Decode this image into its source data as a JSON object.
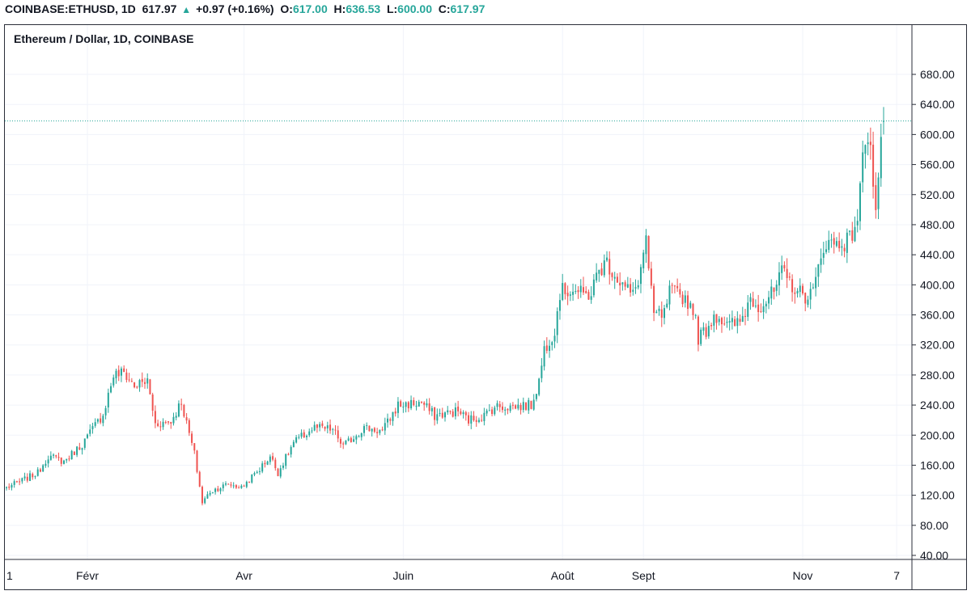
{
  "header": {
    "symbol": "COINBASE:ETHUSD, 1D",
    "last": "617.97",
    "change": "+0.97 (+0.16%)",
    "open_label": "O:",
    "open": "617.00",
    "high_label": "H:",
    "high": "636.53",
    "low_label": "L:",
    "low": "600.00",
    "close_label": "C:",
    "close": "617.97"
  },
  "colors": {
    "up": "#26a69a",
    "down": "#ef5350",
    "grid": "#f0f3fa",
    "price_line": "#26a69a"
  },
  "chart_data": {
    "type": "candlestick",
    "title": "Ethereum / Dollar, 1D, COINBASE",
    "ylim": [
      40,
      700
    ],
    "yticks": [
      "40.00",
      "80.00",
      "120.00",
      "160.00",
      "200.00",
      "240.00",
      "280.00",
      "320.00",
      "360.00",
      "400.00",
      "440.00",
      "480.00",
      "520.00",
      "560.00",
      "600.00",
      "640.00",
      "680.00"
    ],
    "xlim": [
      0,
      336
    ],
    "xticks": [
      {
        "label": "1",
        "x": 0
      },
      {
        "label": "Févr",
        "x": 31
      },
      {
        "label": "Avr",
        "x": 91
      },
      {
        "label": "Juin",
        "x": 152
      },
      {
        "label": "Août",
        "x": 213
      },
      {
        "label": "Sept",
        "x": 244
      },
      {
        "label": "Nov",
        "x": 305
      },
      {
        "label": "7",
        "x": 341
      }
    ],
    "grid": true,
    "last_price": 617.97,
    "anchors": [
      [
        0,
        130
      ],
      [
        5,
        138
      ],
      [
        12,
        150
      ],
      [
        16,
        172
      ],
      [
        22,
        165
      ],
      [
        29,
        188
      ],
      [
        37,
        228
      ],
      [
        41,
        280
      ],
      [
        45,
        283
      ],
      [
        49,
        265
      ],
      [
        54,
        272
      ],
      [
        57,
        215
      ],
      [
        63,
        218
      ],
      [
        67,
        245
      ],
      [
        69,
        215
      ],
      [
        72,
        175
      ],
      [
        75,
        110
      ],
      [
        78,
        125
      ],
      [
        85,
        135
      ],
      [
        90,
        130
      ],
      [
        97,
        155
      ],
      [
        101,
        172
      ],
      [
        104,
        150
      ],
      [
        110,
        190
      ],
      [
        118,
        210
      ],
      [
        125,
        207
      ],
      [
        129,
        185
      ],
      [
        137,
        210
      ],
      [
        144,
        205
      ],
      [
        150,
        240
      ],
      [
        159,
        243
      ],
      [
        164,
        226
      ],
      [
        173,
        232
      ],
      [
        177,
        220
      ],
      [
        183,
        226
      ],
      [
        187,
        238
      ],
      [
        195,
        238
      ],
      [
        201,
        240
      ],
      [
        204,
        272
      ],
      [
        206,
        315
      ],
      [
        210,
        340
      ],
      [
        212,
        390
      ],
      [
        217,
        395
      ],
      [
        221,
        385
      ],
      [
        224,
        390
      ],
      [
        227,
        420
      ],
      [
        230,
        430
      ],
      [
        236,
        400
      ],
      [
        240,
        385
      ],
      [
        243,
        420
      ],
      [
        245,
        465
      ],
      [
        246,
        415
      ],
      [
        248,
        360
      ],
      [
        252,
        360
      ],
      [
        254,
        390
      ],
      [
        259,
        385
      ],
      [
        263,
        370
      ],
      [
        265,
        330
      ],
      [
        268,
        340
      ],
      [
        271,
        360
      ],
      [
        273,
        358
      ],
      [
        276,
        345
      ],
      [
        281,
        350
      ],
      [
        285,
        383
      ],
      [
        289,
        372
      ],
      [
        294,
        390
      ],
      [
        297,
        415
      ],
      [
        301,
        400
      ],
      [
        305,
        385
      ],
      [
        309,
        390
      ],
      [
        311,
        420
      ],
      [
        313,
        455
      ],
      [
        318,
        455
      ],
      [
        323,
        460
      ],
      [
        326,
        490
      ],
      [
        329,
        600
      ],
      [
        331,
        600
      ],
      [
        332,
        525
      ],
      [
        333,
        505
      ],
      [
        335,
        580
      ],
      [
        336,
        618
      ]
    ],
    "candle_count": 337
  }
}
